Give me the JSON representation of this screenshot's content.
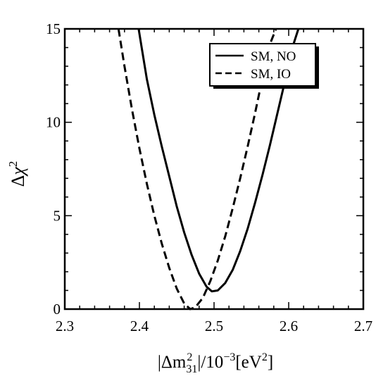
{
  "chart_data": {
    "type": "line",
    "xlabel": "|Δm²₃₁|/10⁻³[eV²]",
    "ylabel": "Δχ²",
    "xlim": [
      2.3,
      2.7
    ],
    "ylim": [
      0,
      15
    ],
    "x_ticks": [
      "2.3",
      "2.4",
      "2.5",
      "2.6",
      "2.7"
    ],
    "y_ticks": [
      "0",
      "5",
      "10",
      "15"
    ],
    "grid": false,
    "legend_position": "top-right",
    "series": [
      {
        "name": "SM, NO",
        "line_style": "solid",
        "color": "#000000",
        "x": [
          2.399,
          2.403,
          2.41,
          2.42,
          2.43,
          2.44,
          2.45,
          2.46,
          2.47,
          2.48,
          2.49,
          2.497,
          2.505,
          2.515,
          2.525,
          2.535,
          2.545,
          2.555,
          2.565,
          2.575,
          2.585,
          2.595,
          2.605,
          2.613
        ],
        "y": [
          15.0,
          14.0,
          12.3,
          10.4,
          8.7,
          7.1,
          5.5,
          4.1,
          2.9,
          1.9,
          1.2,
          0.95,
          1.0,
          1.4,
          2.1,
          3.1,
          4.3,
          5.7,
          7.2,
          8.8,
          10.5,
          12.2,
          14.0,
          15.0
        ]
      },
      {
        "name": "SM, IO",
        "line_style": "dashed",
        "color": "#000000",
        "x": [
          2.372,
          2.38,
          2.39,
          2.4,
          2.41,
          2.42,
          2.43,
          2.44,
          2.45,
          2.46,
          2.468,
          2.475,
          2.485,
          2.495,
          2.505,
          2.515,
          2.525,
          2.535,
          2.545,
          2.555,
          2.565,
          2.575,
          2.583
        ],
        "y": [
          15.0,
          13.0,
          10.7,
          8.6,
          6.7,
          5.0,
          3.5,
          2.2,
          1.1,
          0.3,
          0.0,
          0.1,
          0.6,
          1.5,
          2.6,
          3.9,
          5.4,
          7.0,
          8.7,
          10.5,
          12.4,
          14.2,
          15.0
        ]
      }
    ]
  }
}
